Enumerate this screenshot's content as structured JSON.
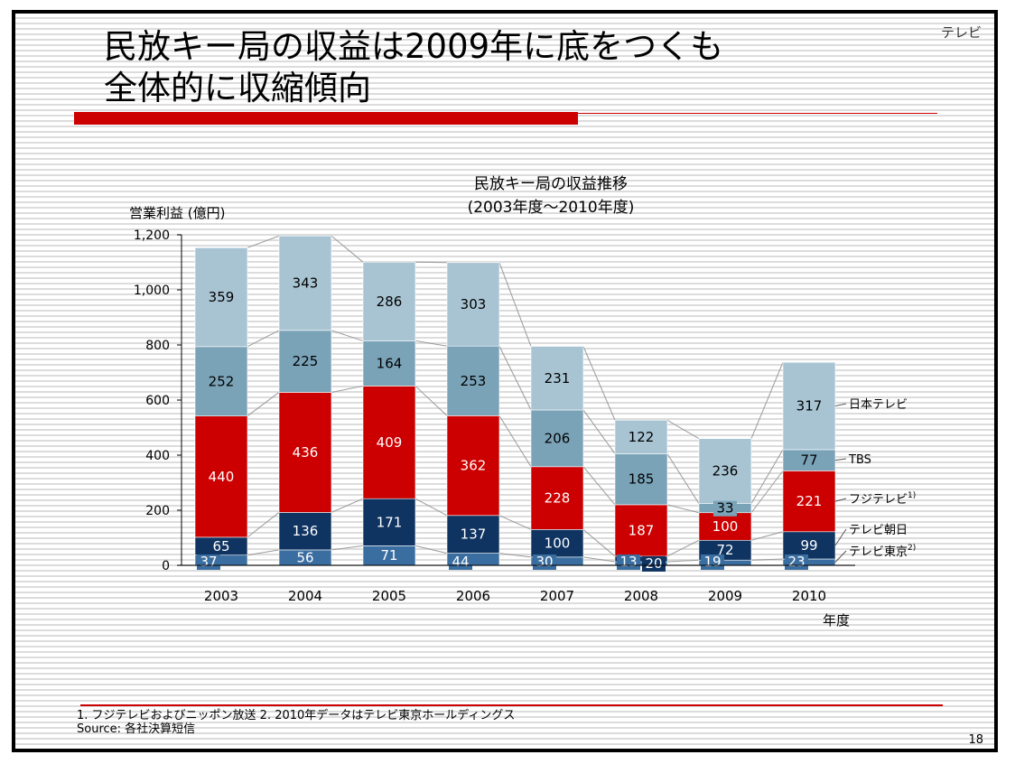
{
  "slide": {
    "title_line1": "民放キー局の収益は2009年に底をつくも",
    "title_line2": "全体的に収縮傾向",
    "corner_label": "テレビ",
    "page_number": "18",
    "footnote": "1. フジテレビおよびニッポン放送  2. 2010年データはテレビ東京ホールディングス",
    "source": "Source: 各社決算短信"
  },
  "colors": {
    "ntv": "#a8c4d3",
    "tbs": "#7aa3b8",
    "fuji": "#cc0000",
    "tvasahi": "#0f3461",
    "tvtokyo": "#3b6ea0",
    "accent_red": "#cc0000"
  },
  "chart_data": {
    "type": "bar",
    "stacked": true,
    "title": "民放キー局の収益推移",
    "subtitle": "(2003年度～2010年度)",
    "ylabel": "営業利益 (億円)",
    "xlabel": "年度",
    "ylim": [
      0,
      1200
    ],
    "yticks": [
      "0",
      "200",
      "400",
      "600",
      "800",
      "1,000",
      "1,200"
    ],
    "categories": [
      "2003",
      "2004",
      "2005",
      "2006",
      "2007",
      "2008",
      "2009",
      "2010"
    ],
    "series": [
      {
        "name": "テレビ東京",
        "sup": "2)",
        "values": [
          37,
          56,
          71,
          44,
          30,
          13,
          19,
          23
        ]
      },
      {
        "name": "テレビ朝日",
        "sup": "",
        "values": [
          65,
          136,
          171,
          137,
          100,
          20,
          72,
          99
        ]
      },
      {
        "name": "フジテレビ",
        "sup": "1)",
        "values": [
          440,
          436,
          409,
          362,
          228,
          187,
          100,
          221
        ]
      },
      {
        "name": "TBS",
        "sup": "",
        "values": [
          252,
          225,
          164,
          253,
          206,
          185,
          33,
          77
        ]
      },
      {
        "name": "日本テレビ",
        "sup": "",
        "values": [
          359,
          343,
          286,
          303,
          231,
          122,
          236,
          317
        ]
      }
    ],
    "grid": false,
    "legend_position": "right"
  }
}
